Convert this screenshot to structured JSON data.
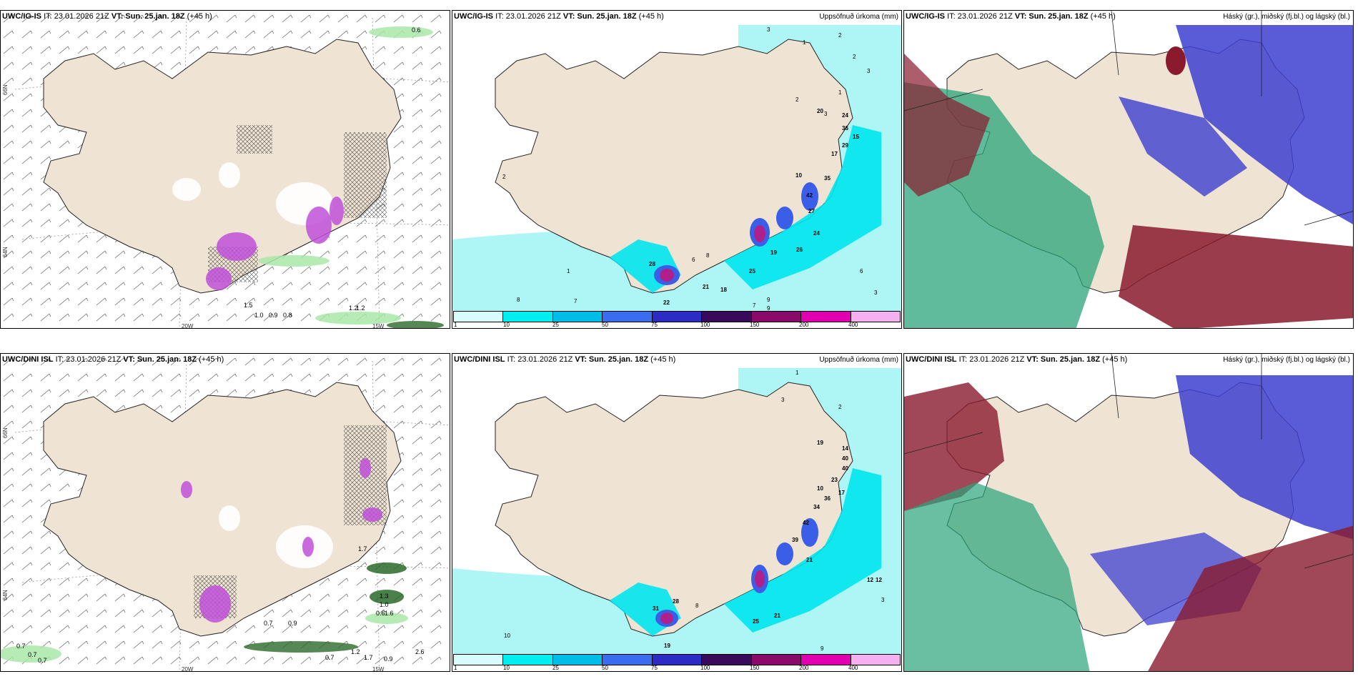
{
  "colors": {
    "land": "#efe3d3",
    "precip_light": "#aef5f5",
    "precip_mid": "#00e6ee",
    "precip_blue": "#3a5ee8",
    "precip_magenta": "#b0208a",
    "cloud_high": "#2aa47a",
    "cloud_mid": "#8a1a2e",
    "cloud_low": "#3d3fd0",
    "wind_green": "#a9e8a9",
    "wind_magenta": "#c050d8"
  },
  "panels": {
    "r1c1": {
      "model": "UWC/IG-IS",
      "it": "IT: 23.01.2026 21Z",
      "vt_label": "VT:",
      "vt_value": "Sun. 25.jan. 18Z",
      "lead": "(+45 h)",
      "title_right": ""
    },
    "r1c2": {
      "model": "UWC/IG-IS",
      "it": "IT: 23.01.2026 21Z",
      "vt_label": "VT:",
      "vt_value": "Sun. 25.jan. 18Z",
      "lead": "(+45 h)",
      "title_right": "Uppsöfnuð úrkoma (mm)"
    },
    "r1c3": {
      "model": "UWC/IG-IS",
      "it": "IT: 23.01.2026 21Z",
      "vt_label": "VT:",
      "vt_value": "Sun. 25.jan. 18Z",
      "lead": "(+45 h)",
      "title_right": "Háský (gr.), miðský (fj.bl.) og lágský (bl.)"
    },
    "r2c1": {
      "model": "UWC/DINI ISL",
      "it": "IT: 23.01.2026 21Z",
      "vt_label": "VT:",
      "vt_value": "Sun. 25.jan. 18Z",
      "lead": "(+45 h)",
      "title_right": ""
    },
    "r2c2": {
      "model": "UWC/DINI ISL",
      "it": "IT: 23.01.2026 21Z",
      "vt_label": "VT:",
      "vt_value": "Sun. 25.jan. 18Z",
      "lead": "(+45 h)",
      "title_right": "Uppsöfnuð úrkoma (mm)"
    },
    "r2c3": {
      "model": "UWC/DINI ISL",
      "it": "IT: 23.01.2026 21Z",
      "vt_label": "VT:",
      "vt_value": "Sun. 25.jan. 18Z",
      "lead": "(+45 h)",
      "title_right": "Háský (gr.), miðský (fj.bl.) og lágský (bl.)"
    }
  },
  "grid_labels": {
    "lat_66": "66N",
    "lat_64": "64N",
    "lon_20": "20W",
    "lon_15": "15W"
  },
  "legend": {
    "values": [
      "1",
      "10",
      "25",
      "50",
      "75",
      "100",
      "150",
      "200",
      "400"
    ],
    "colors": [
      "#d8fbfb",
      "#00eef0",
      "#00bde8",
      "#3a6cf0",
      "#2c2cc4",
      "#3a0a5a",
      "#8a0a6a",
      "#e000b0",
      "#f5b0f0"
    ]
  },
  "precip_values_r1": [
    "3",
    "1",
    "2",
    "2",
    "3",
    "1",
    "2",
    "3",
    "20",
    "24",
    "36",
    "15",
    "29",
    "17",
    "10",
    "35",
    "42",
    "27",
    "24",
    "26",
    "19",
    "25",
    "21",
    "18",
    "28",
    "22",
    "6",
    "8",
    "9",
    "7",
    "2",
    "1",
    "8",
    "7",
    "9",
    "6",
    "3"
  ],
  "precip_values_r2": [
    "1",
    "3",
    "2",
    "19",
    "14",
    "40",
    "40",
    "23",
    "10",
    "36",
    "34",
    "42",
    "39",
    "17",
    "21",
    "25",
    "21",
    "28",
    "31",
    "19",
    "12",
    "12",
    "10",
    "8",
    "9",
    "3"
  ],
  "wind_values_r1": [
    "0.6",
    "1.5",
    "1.0",
    "0.9",
    "0.8",
    "1.2",
    "1.2"
  ],
  "wind_values_r2": [
    "0.7",
    "0.9",
    "1.7",
    "1.3",
    "1.0",
    "0.6",
    "1.6",
    "0.7",
    "0.7",
    "1.2",
    "0.9",
    "2.6",
    "0.7",
    "0.7",
    "1.7"
  ]
}
